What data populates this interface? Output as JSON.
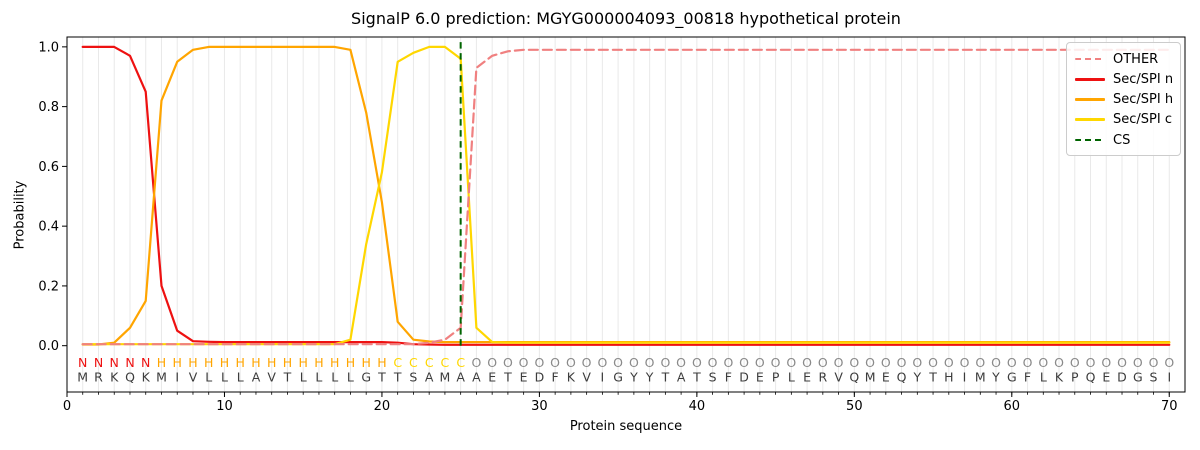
{
  "title": "SignalP 6.0 prediction: MGYG000004093_00818 hypothetical protein",
  "axes": {
    "xlabel": "Protein sequence",
    "ylabel": "Probability",
    "x_ticks": [
      0,
      10,
      20,
      30,
      40,
      50,
      60,
      70
    ],
    "y_ticks": [
      0.0,
      0.2,
      0.4,
      0.6,
      0.8,
      1.0
    ],
    "xlim": [
      0,
      71
    ],
    "ylim": [
      -0.155,
      1.033
    ],
    "grid": "light vertical gridline at every residue position"
  },
  "legend": {
    "position": "upper right",
    "items": [
      {
        "label": "OTHER",
        "color": "#f08080",
        "dash": true
      },
      {
        "label": "Sec/SPI n",
        "color": "#ee1111",
        "dash": false
      },
      {
        "label": "Sec/SPI h",
        "color": "#ffa500",
        "dash": false
      },
      {
        "label": "Sec/SPI c",
        "color": "#ffd700",
        "dash": false
      },
      {
        "label": "CS",
        "color": "#006400",
        "dash": true
      }
    ]
  },
  "chart_data": {
    "type": "line",
    "x": [
      1,
      2,
      3,
      4,
      5,
      6,
      7,
      8,
      9,
      10,
      11,
      12,
      13,
      14,
      15,
      16,
      17,
      18,
      19,
      20,
      21,
      22,
      23,
      24,
      25,
      26,
      27,
      28,
      29,
      30,
      31,
      32,
      33,
      34,
      35,
      36,
      37,
      38,
      39,
      40,
      41,
      42,
      43,
      44,
      45,
      46,
      47,
      48,
      49,
      50,
      51,
      52,
      53,
      54,
      55,
      56,
      57,
      58,
      59,
      60,
      61,
      62,
      63,
      64,
      65,
      66,
      67,
      68,
      69,
      70
    ],
    "draw_order": [
      "Sec/SPI n",
      "Sec/SPI h",
      "Sec/SPI c",
      "OTHER"
    ],
    "series": [
      {
        "name": "Sec/SPI n",
        "color": "#ee1111",
        "dash": false,
        "values": [
          1.0,
          1.0,
          1.0,
          0.97,
          0.85,
          0.2,
          0.05,
          0.015,
          0.013,
          0.012,
          0.012,
          0.012,
          0.012,
          0.012,
          0.012,
          0.012,
          0.012,
          0.012,
          0.012,
          0.012,
          0.01,
          0.005,
          0.004,
          0.003,
          0.003,
          0.003,
          0.003,
          0.003,
          0.003,
          0.003,
          0.003,
          0.003,
          0.003,
          0.003,
          0.003,
          0.003,
          0.003,
          0.003,
          0.003,
          0.003,
          0.003,
          0.003,
          0.003,
          0.003,
          0.003,
          0.003,
          0.003,
          0.003,
          0.003,
          0.003,
          0.003,
          0.003,
          0.003,
          0.003,
          0.003,
          0.003,
          0.003,
          0.003,
          0.003,
          0.003,
          0.003,
          0.003,
          0.003,
          0.003,
          0.003,
          0.003,
          0.003,
          0.003,
          0.003,
          0.003
        ]
      },
      {
        "name": "Sec/SPI h",
        "color": "#ffa500",
        "dash": false,
        "values": [
          0.004,
          0.004,
          0.01,
          0.06,
          0.15,
          0.82,
          0.95,
          0.99,
          1.0,
          1.0,
          1.0,
          1.0,
          1.0,
          1.0,
          1.0,
          1.0,
          1.0,
          0.99,
          0.78,
          0.48,
          0.08,
          0.02,
          0.014,
          0.012,
          0.012,
          0.012,
          0.012,
          0.012,
          0.012,
          0.012,
          0.012,
          0.012,
          0.012,
          0.012,
          0.012,
          0.012,
          0.012,
          0.012,
          0.012,
          0.012,
          0.012,
          0.012,
          0.012,
          0.012,
          0.012,
          0.012,
          0.012,
          0.012,
          0.012,
          0.012,
          0.012,
          0.012,
          0.012,
          0.012,
          0.012,
          0.012,
          0.012,
          0.012,
          0.012,
          0.012,
          0.012,
          0.012,
          0.012,
          0.012,
          0.012,
          0.012,
          0.012,
          0.012,
          0.012,
          0.012
        ]
      },
      {
        "name": "Sec/SPI c",
        "color": "#ffd700",
        "dash": false,
        "values": [
          0.005,
          0.005,
          0.005,
          0.005,
          0.005,
          0.005,
          0.005,
          0.005,
          0.005,
          0.005,
          0.005,
          0.005,
          0.005,
          0.005,
          0.005,
          0.005,
          0.005,
          0.02,
          0.34,
          0.58,
          0.95,
          0.98,
          1.0,
          1.0,
          0.96,
          0.06,
          0.012,
          0.01,
          0.01,
          0.01,
          0.01,
          0.01,
          0.01,
          0.01,
          0.01,
          0.01,
          0.01,
          0.01,
          0.01,
          0.01,
          0.01,
          0.01,
          0.01,
          0.01,
          0.01,
          0.01,
          0.01,
          0.01,
          0.01,
          0.01,
          0.01,
          0.01,
          0.01,
          0.01,
          0.01,
          0.01,
          0.01,
          0.01,
          0.01,
          0.01,
          0.01,
          0.01,
          0.01,
          0.01,
          0.01,
          0.01,
          0.01,
          0.01,
          0.01,
          0.01
        ]
      },
      {
        "name": "OTHER",
        "color": "#f08080",
        "dash": true,
        "values": [
          0.005,
          0.005,
          0.005,
          0.005,
          0.005,
          0.005,
          0.005,
          0.005,
          0.005,
          0.005,
          0.005,
          0.005,
          0.005,
          0.005,
          0.005,
          0.005,
          0.005,
          0.005,
          0.005,
          0.005,
          0.005,
          0.005,
          0.01,
          0.02,
          0.06,
          0.93,
          0.97,
          0.985,
          0.99,
          0.99,
          0.99,
          0.99,
          0.99,
          0.99,
          0.99,
          0.99,
          0.99,
          0.99,
          0.99,
          0.99,
          0.99,
          0.99,
          0.99,
          0.99,
          0.99,
          0.99,
          0.99,
          0.99,
          0.99,
          0.99,
          0.99,
          0.99,
          0.99,
          0.99,
          0.99,
          0.99,
          0.99,
          0.99,
          0.99,
          0.99,
          0.99,
          0.99,
          0.99,
          0.99,
          0.99,
          0.99,
          0.99,
          0.99,
          0.99,
          0.99
        ]
      }
    ],
    "cs_line": {
      "label": "CS",
      "x": 25,
      "color": "#006400"
    }
  },
  "sequence": {
    "residues": "MRKQKMIVLLLAVTLLLLGTTSAMAAETEDFKVIGYYTATSFDEPLERVQMEQYTHIMYGFLKPQEDGSI",
    "regions": "NNNNNHHHHHHHHHHHHHHHCCCCCOOOOOOOOOOOOOOOOOOOOOOOOOOOOOOOOOOOOOOOOOOOOO",
    "region_colors": {
      "N": "#ee1111",
      "H": "#ffa500",
      "C": "#ffd700",
      "O": "#8a8a8a"
    },
    "residue_color": "#3c3c3c"
  }
}
